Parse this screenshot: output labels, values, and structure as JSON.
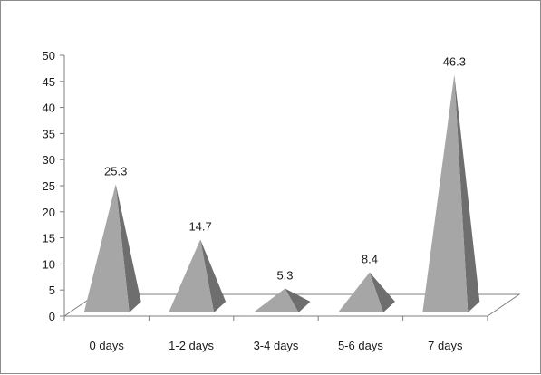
{
  "chart_data": {
    "type": "bar",
    "style": "3d-pyramid",
    "title": "",
    "xlabel": "",
    "ylabel": "",
    "categories": [
      "0 days",
      "1-2 days",
      "3-4 days",
      "5-6 days",
      "7 days"
    ],
    "series": [
      {
        "values": [
          25.3,
          14.7,
          5.3,
          8.4,
          46.3
        ],
        "labels": [
          "25.3",
          "14.7",
          "5.3",
          "8.4",
          "46.3"
        ]
      }
    ],
    "ylim": [
      0,
      50
    ],
    "yticks": [
      "0",
      "5",
      "10",
      "15",
      "20",
      "25",
      "30",
      "35",
      "40",
      "45",
      "50"
    ],
    "grid": false,
    "legend": "none",
    "colors": {
      "pyramid_light": "#a6a6a6",
      "pyramid_dark": "#6e6e6e",
      "floor": "#ffffff",
      "axis": "#7f7f7f"
    }
  }
}
